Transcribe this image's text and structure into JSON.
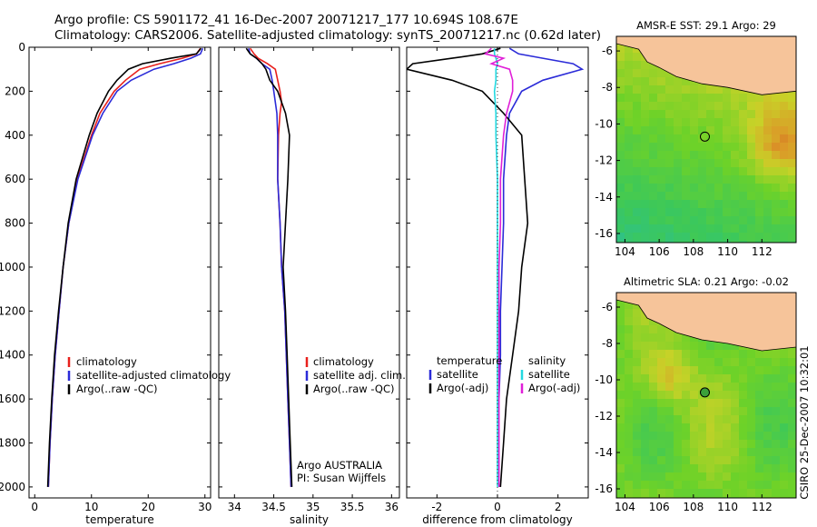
{
  "header": {
    "line1": "Argo profile: CS 5901172_41 16-Dec-2007 20071217_177 10.694S 108.67E",
    "line2": "Climatology: CARS2006. Satellite-adjusted climatology: synTS_20071217.nc (0.62d later)"
  },
  "side_label": "CSIRO 25-Dec-2007 10:32:01",
  "colors": {
    "climatology": "#e8201c",
    "satellite": "#2b2bd8",
    "argo": "#000000",
    "sat_diff": "#22d8e0",
    "argo_diff": "#e020d8",
    "land": "#f6c49a"
  },
  "chart_data": [
    {
      "type": "line",
      "id": "temperature",
      "xlabel": "temperature",
      "ylabel": "",
      "xlim": [
        -1,
        31
      ],
      "ylim": [
        2050,
        0
      ],
      "x_ticks": [
        0,
        10,
        20,
        30
      ],
      "y_ticks": [
        0,
        200,
        400,
        600,
        800,
        1000,
        1200,
        1400,
        1600,
        1800,
        2000
      ],
      "depth": [
        5,
        30,
        50,
        75,
        100,
        150,
        200,
        300,
        400,
        600,
        800,
        1000,
        1200,
        1400,
        1600,
        1800,
        2000
      ],
      "series": [
        {
          "name": "climatology",
          "values": [
            29.2,
            28.5,
            26,
            22,
            18.5,
            16,
            14,
            11.5,
            10,
            7.5,
            6,
            5,
            4.3,
            3.6,
            3.1,
            2.7,
            2.4
          ]
        },
        {
          "name": "satellite-adjusted climatology",
          "values": [
            29.6,
            29.2,
            27.5,
            24.5,
            21,
            17,
            14.5,
            12,
            10.2,
            7.6,
            6,
            5,
            4.3,
            3.6,
            3.1,
            2.7,
            2.4
          ]
        },
        {
          "name": "Argo(..raw -QC)",
          "values": [
            29.3,
            28.5,
            24,
            19,
            16.5,
            14.5,
            13,
            11,
            9.6,
            7.3,
            5.9,
            5,
            4.2,
            3.5,
            3,
            2.6,
            2.3
          ]
        }
      ],
      "legend": [
        "climatology",
        "satellite-adjusted climatology",
        "Argo(..raw -QC)"
      ]
    },
    {
      "type": "line",
      "id": "salinity",
      "xlabel": "salinity",
      "ylabel": "",
      "xlim": [
        33.8,
        36.1
      ],
      "ylim": [
        2050,
        0
      ],
      "x_ticks": [
        34,
        34.5,
        35,
        35.5,
        36
      ],
      "depth": [
        5,
        30,
        50,
        75,
        100,
        150,
        200,
        250,
        300,
        400,
        600,
        800,
        1000,
        1200,
        1400,
        1600,
        1800,
        2000
      ],
      "series": [
        {
          "name": "climatology",
          "values": [
            34.2,
            34.25,
            34.3,
            34.42,
            34.52,
            34.55,
            34.58,
            34.6,
            34.58,
            34.56,
            34.55,
            34.58,
            34.6,
            34.64,
            34.66,
            34.68,
            34.7,
            34.72
          ]
        },
        {
          "name": "satellite adj. clim.",
          "values": [
            34.18,
            34.2,
            34.28,
            34.35,
            34.45,
            34.48,
            34.5,
            34.52,
            34.54,
            34.55,
            34.55,
            34.58,
            34.6,
            34.64,
            34.66,
            34.68,
            34.7,
            34.72
          ]
        },
        {
          "name": "Argo(..raw -QC)",
          "values": [
            34.15,
            34.2,
            34.28,
            34.35,
            34.4,
            34.45,
            34.55,
            34.6,
            34.65,
            34.7,
            34.68,
            34.65,
            34.62,
            34.65,
            34.67,
            34.69,
            34.71,
            34.73
          ]
        }
      ],
      "legend": [
        "climatology",
        "satellite adj. clim.",
        "Argo(..raw -QC)"
      ],
      "annotation": [
        "Argo AUSTRALIA",
        "PI: Susan Wijffels"
      ]
    },
    {
      "type": "line",
      "id": "difference",
      "xlabel": "difference from climatology",
      "ylabel": "",
      "xlim": [
        -3,
        3
      ],
      "ylim": [
        2050,
        0
      ],
      "x_ticks": [
        -2,
        0,
        2
      ],
      "depth": [
        5,
        30,
        50,
        75,
        100,
        150,
        200,
        300,
        400,
        600,
        800,
        1000,
        1200,
        1400,
        1600,
        1800,
        2000
      ],
      "series": [
        {
          "name": "temperature satellite",
          "values": [
            0.4,
            0.7,
            1.5,
            2.5,
            2.8,
            1.5,
            0.8,
            0.4,
            0.3,
            0.2,
            0.2,
            0.15,
            0.1,
            0.1,
            0.05,
            0.05,
            0.05
          ]
        },
        {
          "name": "temperature Argo(-adj)",
          "values": [
            0.1,
            -0.5,
            -1.5,
            -2.8,
            -3,
            -1.5,
            -0.5,
            0.2,
            0.8,
            0.9,
            1.0,
            0.8,
            0.7,
            0.5,
            0.3,
            0.2,
            0.1
          ]
        },
        {
          "name": "salinity satellite",
          "values": [
            -0.1,
            -0.1,
            -0.05,
            0,
            -0.05,
            -0.05,
            -0.1,
            -0.05,
            -0.05,
            0,
            0,
            0,
            0,
            0,
            0,
            0,
            0
          ]
        },
        {
          "name": "salinity Argo(-adj)",
          "values": [
            -0.2,
            -0.4,
            0.2,
            -0.2,
            0.4,
            0.5,
            0.5,
            0.3,
            0.2,
            0.1,
            0.1,
            0.05,
            0.05,
            0.05,
            0.05,
            0.05,
            0.05
          ]
        }
      ],
      "legend_headers": [
        "temperature",
        "salinity"
      ],
      "legend_left": [
        "satellite",
        "Argo(-adj)"
      ],
      "legend_right": [
        "satellite",
        "Argo(-adj)"
      ]
    },
    {
      "type": "heatmap",
      "id": "sst-map",
      "title": "AMSR-E SST: 29.1  Argo: 29",
      "x_ticks": [
        104,
        106,
        108,
        110,
        112
      ],
      "y_ticks": [
        -6,
        -8,
        -10,
        -12,
        -14,
        -16
      ],
      "xlim": [
        103.5,
        114
      ],
      "ylim": [
        -16.5,
        -5.2
      ],
      "argo_position": {
        "lon": 108.67,
        "lat": -10.694
      }
    },
    {
      "type": "heatmap",
      "id": "sla-map",
      "title": "Altimetric SLA: 0.21  Argo: -0.02",
      "x_ticks": [
        104,
        106,
        108,
        110,
        112
      ],
      "y_ticks": [
        -6,
        -8,
        -10,
        -12,
        -14,
        -16
      ],
      "xlim": [
        103.5,
        114
      ],
      "ylim": [
        -16.5,
        -5.2
      ],
      "argo_position": {
        "lon": 108.67,
        "lat": -10.694
      }
    }
  ]
}
